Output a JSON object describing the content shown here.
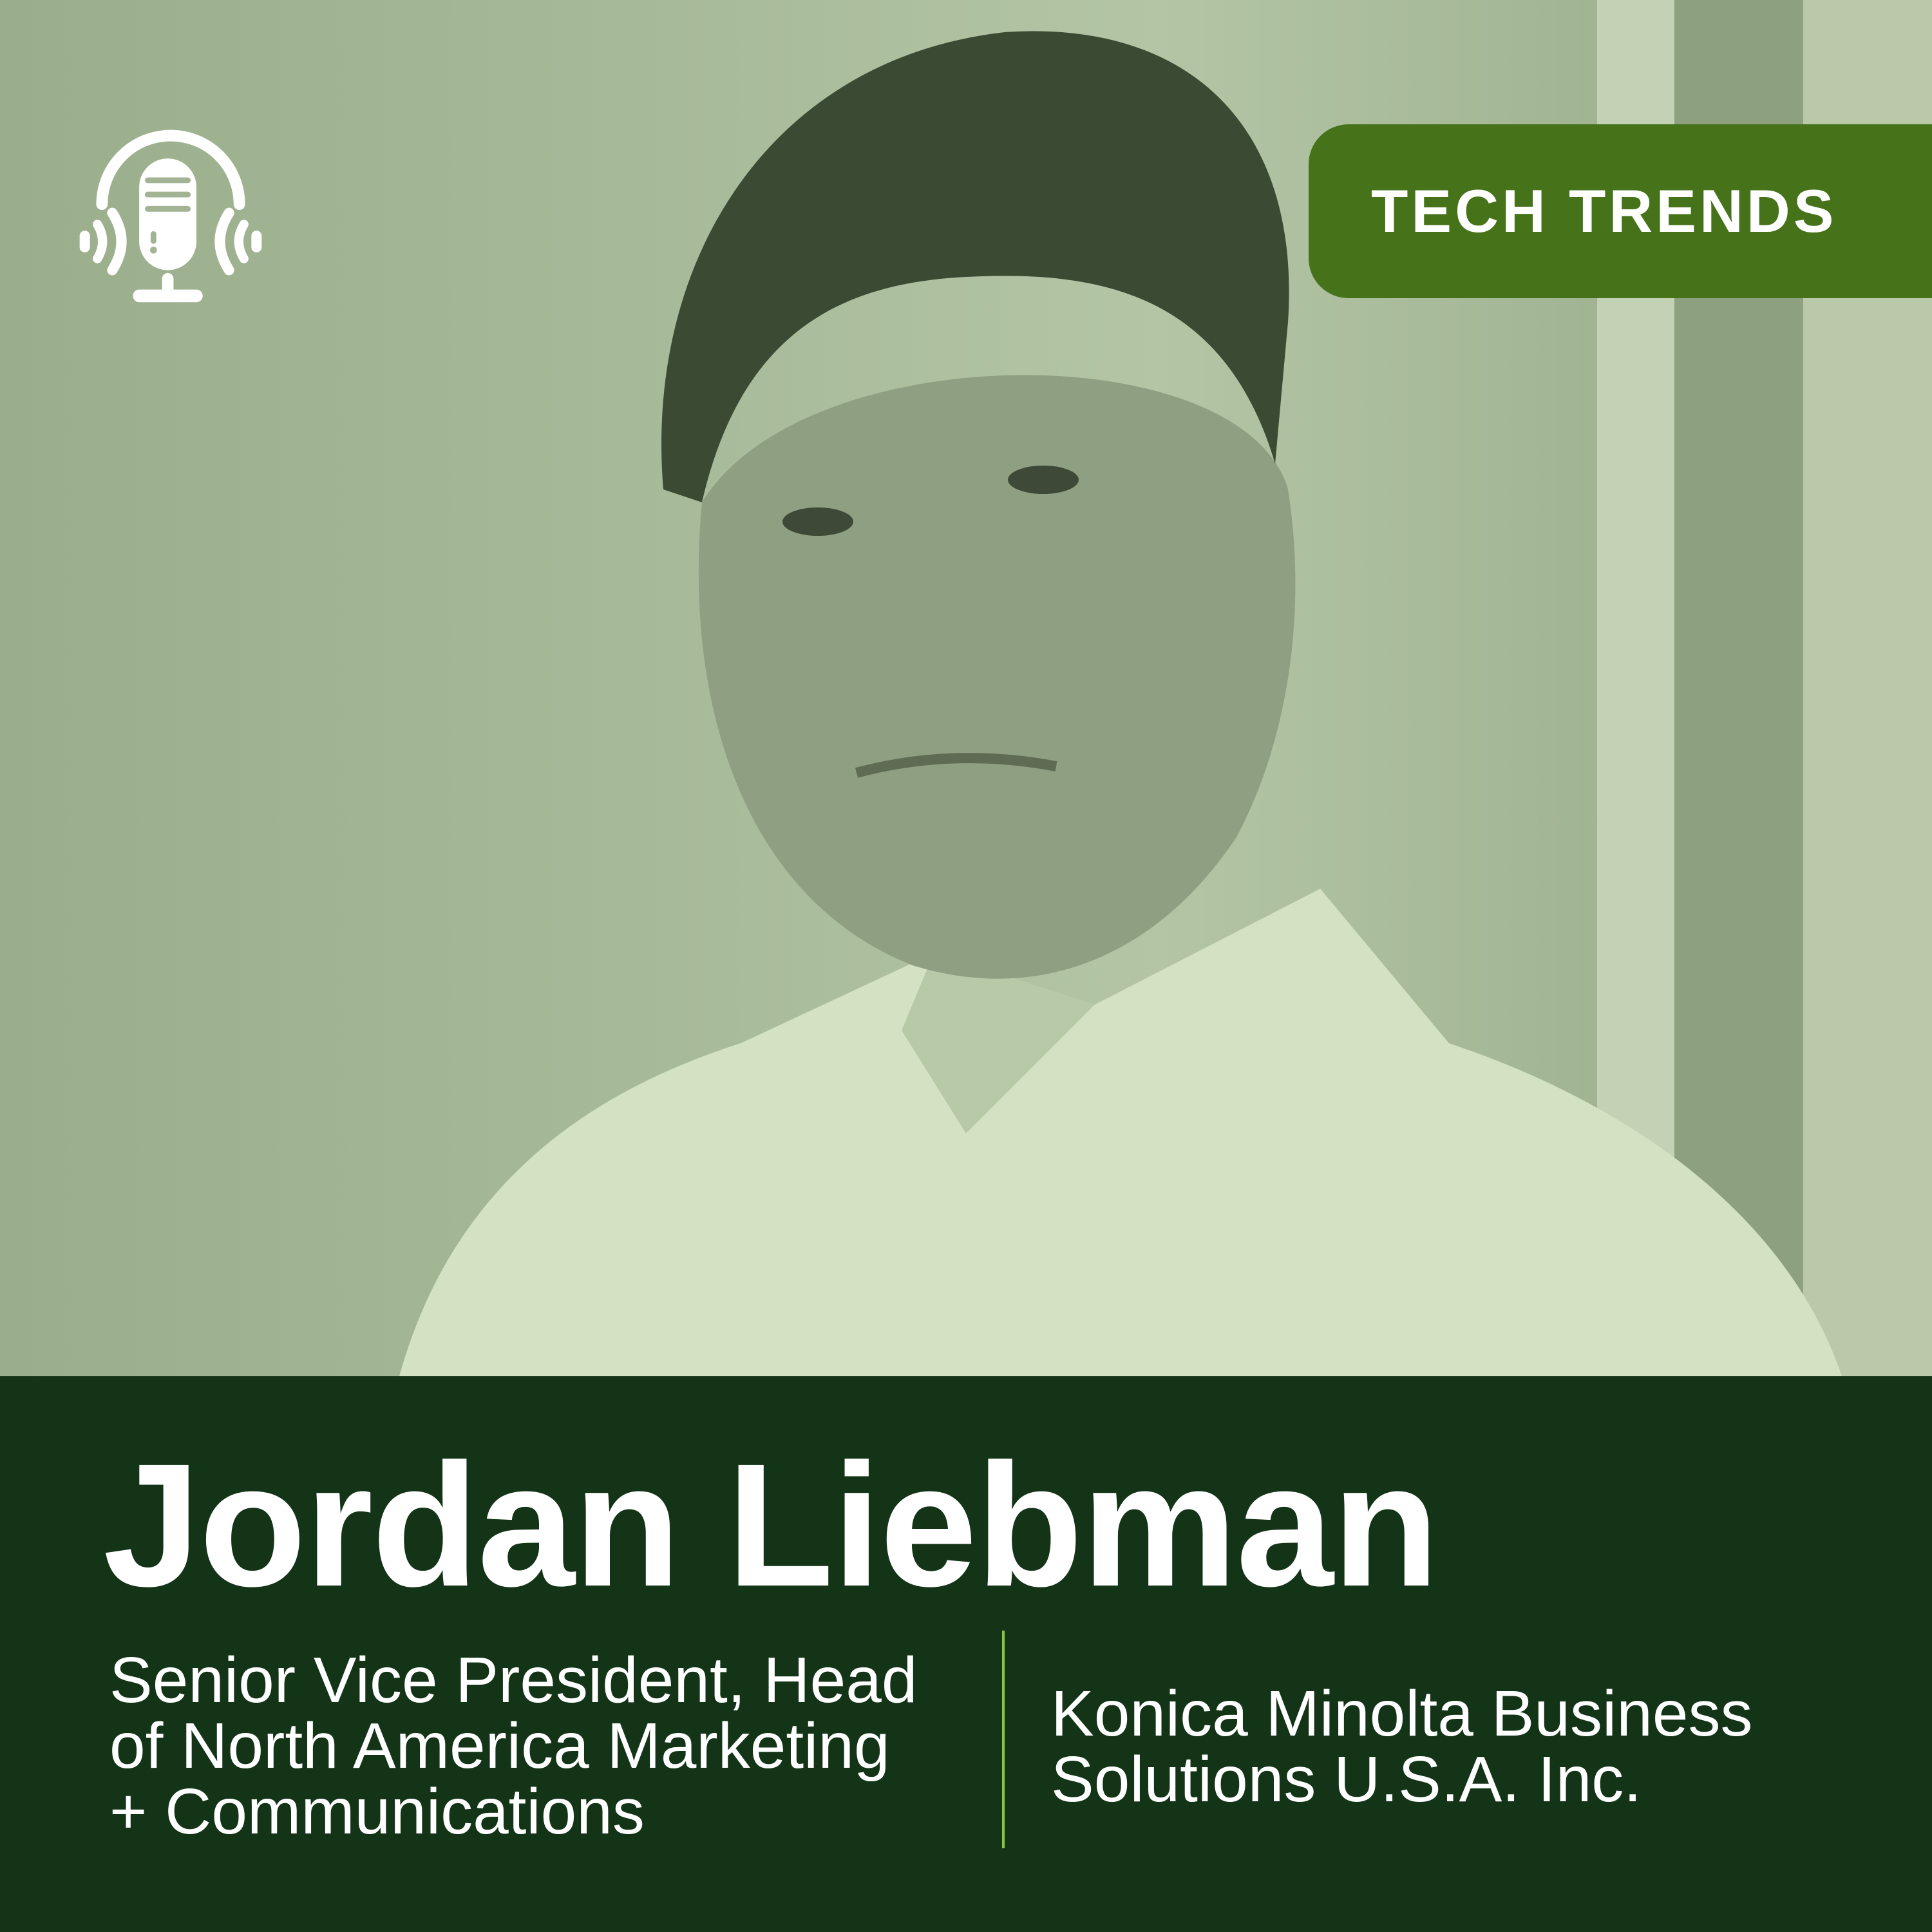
{
  "badge": {
    "label": "TECH TRENDS"
  },
  "logo": {
    "icon": "podcast-microphone-headphones-icon"
  },
  "guest": {
    "name": "Jordan Liebman",
    "title_lines": [
      "Senior Vice President, Head",
      "of North America Marketing",
      "+ Communications"
    ],
    "company_lines": [
      "Konica Minolta Business",
      "Solutions U.S.A. Inc."
    ]
  },
  "colors": {
    "band": "#133417",
    "badge": "#467219",
    "divider": "#8cc63f",
    "photo_tint": "#a7ba99"
  }
}
